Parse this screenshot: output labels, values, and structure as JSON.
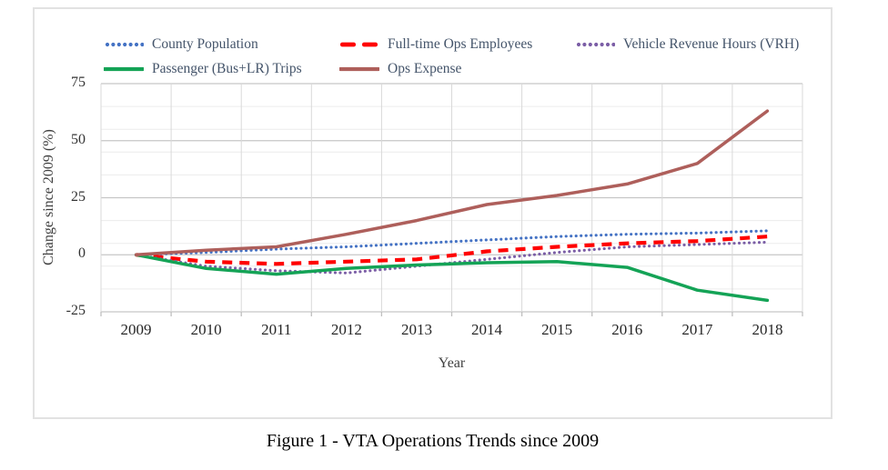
{
  "figure": {
    "caption": "Figure 1 - VTA Operations Trends since 2009"
  },
  "chart_data": {
    "type": "line",
    "title": "",
    "xlabel": "Year",
    "ylabel": "Change since 2009 (%)",
    "x": [
      "2009",
      "2010",
      "2011",
      "2012",
      "2013",
      "2014",
      "2015",
      "2016",
      "2017",
      "2018"
    ],
    "ylim": [
      -25,
      75
    ],
    "yticks": [
      75,
      50,
      25,
      0,
      -25
    ],
    "minor_gridline_unit": 10,
    "major_gridline_unit": 25,
    "grid": true,
    "legend_position": "top",
    "series": [
      {
        "name": "County Population",
        "style": "dotted",
        "color": "#4472C4",
        "values": [
          0,
          1,
          2.5,
          3.5,
          5,
          6.5,
          8,
          9,
          9.5,
          10.5
        ]
      },
      {
        "name": "Full-time Ops Employees",
        "style": "dashed",
        "color": "#FF0000",
        "values": [
          0,
          -3,
          -4,
          -3,
          -2,
          1.5,
          3.5,
          5,
          6,
          8
        ]
      },
      {
        "name": "Vehicle Revenue Hours (VRH)",
        "style": "dotted",
        "color": "#7B5EA6",
        "values": [
          0,
          -5,
          -7,
          -8,
          -5,
          -2,
          1,
          3.5,
          4.5,
          5.5
        ]
      },
      {
        "name": "Passenger (Bus+LR) Trips",
        "style": "solid",
        "color": "#14A356",
        "values": [
          0,
          -6,
          -8.5,
          -6,
          -4.5,
          -3.5,
          -3,
          -5.5,
          -15.5,
          -20
        ]
      },
      {
        "name": "Ops Expense",
        "style": "solid",
        "color": "#AE5F5B",
        "values": [
          0,
          2,
          3.5,
          9,
          15,
          22,
          26,
          31,
          40,
          63
        ]
      }
    ],
    "colors": {
      "major_gridline": "#C6C6C6",
      "minor_gridline": "#ECECEC",
      "vertical_gridline": "#D9D9D9",
      "tick_mark": "#BFBFBF",
      "legend_text": "#44546A",
      "axis_text": "#333333"
    }
  }
}
